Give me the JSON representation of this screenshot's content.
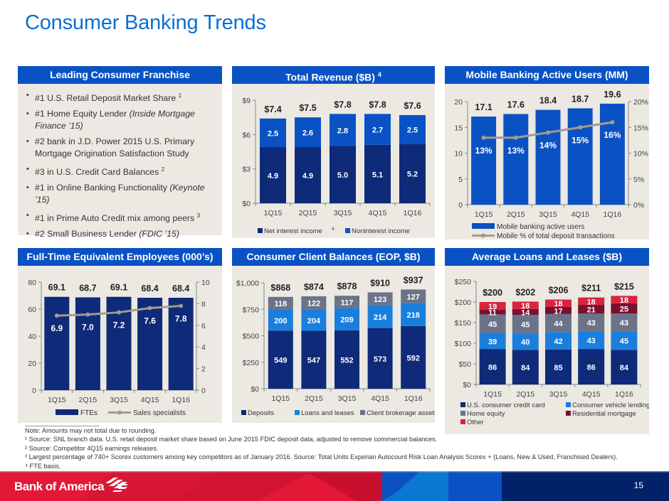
{
  "page": {
    "title": "Consumer Banking Trends",
    "page_number": "15",
    "brand": "Bank of America",
    "colors": {
      "title_blue": "#0a6fd3",
      "header_blue": "#0a52c4",
      "panel_bg": "#ece9e2",
      "navy": "#0e2a78",
      "mid_blue": "#0a52c4",
      "light_blue": "#1a7fdc",
      "gray": "#6b7388",
      "maroon": "#7a0f2e",
      "red": "#d9243f",
      "line_gray": "#a39b8f"
    }
  },
  "franchise": {
    "title": "Leading Consumer Franchise",
    "items": [
      {
        "text": "#1 U.S. Retail Deposit Market Share",
        "sup": "1",
        "italic": ""
      },
      {
        "text": "#1 Home Equity Lender ",
        "sup": "",
        "italic": "(Inside Mortgage Finance ’15)"
      },
      {
        "text": "#2 bank in J.D. Power 2015 U.S. Primary Mortgage Origination Satisfaction Study",
        "sup": "",
        "italic": ""
      },
      {
        "text": "#3 in U.S. Credit Card Balances",
        "sup": "2",
        "italic": ""
      },
      {
        "text": "#1 in Online Banking Functionality ",
        "sup": "",
        "italic": "(Keynote ’15)"
      },
      {
        "text": "#1 in Prime Auto Credit mix among peers",
        "sup": "3",
        "italic": ""
      },
      {
        "text": "#2 Small Business Lender ",
        "sup": "",
        "italic": "(FDIC ’15)"
      }
    ]
  },
  "notes": {
    "lines": [
      "Note: Amounts may not total due to rounding.",
      "¹ Source: SNL branch data. U.S. retail deposit market share based on June 2015 FDIC deposit data, adjusted to remove commercial balances.",
      "² Source: Competitor 4Q15 earnings releases.",
      "³ Largest percentage of 740+ Scorex customers among key competitors as of January 2016. Source: Total Units Experian Autocount Risk Loan Analysis Scorex + (Loans, New & Used, Franchised Dealers).",
      "⁴ FTE basis."
    ]
  },
  "chart_data": [
    {
      "id": "revenue",
      "type": "bar",
      "stacked": true,
      "title": "Total Revenue ($B)",
      "title_sup": "4",
      "categories": [
        "1Q15",
        "2Q15",
        "3Q15",
        "4Q15",
        "1Q16"
      ],
      "series": [
        {
          "name": "Net interest income",
          "name_sup": "4",
          "values": [
            4.9,
            4.9,
            5.0,
            5.1,
            5.2
          ],
          "color": "#0e2a78"
        },
        {
          "name": "Noninterest income",
          "values": [
            2.5,
            2.6,
            2.8,
            2.7,
            2.5
          ],
          "color": "#0a52c4"
        }
      ],
      "totals": [
        "$7.4",
        "$7.5",
        "$7.8",
        "$7.8",
        "$7.6"
      ],
      "labels": [
        [
          "4.9",
          "4.9",
          "5.0",
          "5.1",
          "5.2"
        ],
        [
          "2.5",
          "2.6",
          "2.8",
          "2.7",
          "2.5"
        ]
      ],
      "ylim": [
        0,
        9
      ],
      "yticks": [
        0,
        3,
        6,
        9
      ],
      "ytick_labels": [
        "$0",
        "$3",
        "$6",
        "$9"
      ],
      "legend": "bottom"
    },
    {
      "id": "mobile",
      "type": "bar",
      "title": "Mobile Banking Active Users (MM)",
      "categories": [
        "1Q15",
        "2Q15",
        "3Q15",
        "4Q15",
        "1Q16"
      ],
      "series": [
        {
          "name": "Mobile banking active users",
          "values": [
            17.1,
            17.6,
            18.4,
            18.7,
            19.6
          ],
          "color": "#0a52c4"
        }
      ],
      "line_series": {
        "name": "Mobile % of total deposit transactions",
        "values": [
          13,
          13,
          14,
          15,
          16
        ],
        "labels": [
          "13%",
          "13%",
          "14%",
          "15%",
          "16%"
        ],
        "color": "#a39b8f",
        "axis": "right"
      },
      "totals": [
        "17.1",
        "17.6",
        "18.4",
        "18.7",
        "19.6"
      ],
      "ylim": [
        0,
        20
      ],
      "yticks": [
        0,
        5,
        10,
        15,
        20
      ],
      "ytick_labels": [
        "0",
        "5",
        "10",
        "15",
        "20"
      ],
      "y2lim": [
        0,
        20
      ],
      "y2ticks": [
        0,
        5,
        10,
        15,
        20
      ],
      "y2tick_labels": [
        "0%",
        "5%",
        "10%",
        "15%",
        "20%"
      ],
      "legend": "bottom"
    },
    {
      "id": "fte",
      "type": "bar",
      "title": "Full-Time Equivalent Employees (000’s)",
      "categories": [
        "1Q15",
        "2Q15",
        "3Q15",
        "4Q15",
        "1Q16"
      ],
      "series": [
        {
          "name": "FTEs",
          "values": [
            69.1,
            68.7,
            69.1,
            68.4,
            68.4
          ],
          "color": "#0e2a78"
        }
      ],
      "line_series": {
        "name": "Sales specialists",
        "values": [
          6.9,
          7.0,
          7.2,
          7.6,
          7.8
        ],
        "labels": [
          "6.9",
          "7.0",
          "7.2",
          "7.6",
          "7.8"
        ],
        "color": "#a39b8f",
        "axis": "right"
      },
      "totals": [
        "69.1",
        "68.7",
        "69.1",
        "68.4",
        "68.4"
      ],
      "ylim": [
        0,
        80
      ],
      "yticks": [
        0,
        20,
        40,
        60,
        80
      ],
      "ytick_labels": [
        "0",
        "20",
        "40",
        "60",
        "80"
      ],
      "y2lim": [
        0,
        10
      ],
      "y2ticks": [
        0,
        2,
        4,
        6,
        8,
        10
      ],
      "y2tick_labels": [
        "0",
        "2",
        "4",
        "6",
        "8",
        "10"
      ],
      "legend": "bottom"
    },
    {
      "id": "balances",
      "type": "bar",
      "stacked": true,
      "title": "Consumer Client Balances (EOP, $B)",
      "categories": [
        "1Q15",
        "2Q15",
        "3Q15",
        "4Q15",
        "1Q16"
      ],
      "series": [
        {
          "name": "Deposits",
          "values": [
            549,
            547,
            552,
            573,
            592
          ],
          "color": "#0e2a78"
        },
        {
          "name": "Loans and leases",
          "values": [
            200,
            204,
            209,
            214,
            218
          ],
          "color": "#1a7fdc"
        },
        {
          "name": "Client brokerage assets",
          "values": [
            118,
            122,
            117,
            123,
            127
          ],
          "color": "#6b7388"
        }
      ],
      "totals": [
        "$868",
        "$874",
        "$878",
        "$910",
        "$937"
      ],
      "ylim": [
        0,
        1000
      ],
      "yticks": [
        0,
        250,
        500,
        750,
        1000
      ],
      "ytick_labels": [
        "$0",
        "$250",
        "$500",
        "$750",
        "$1,000"
      ],
      "legend": "bottom"
    },
    {
      "id": "loans",
      "type": "bar",
      "stacked": true,
      "title": "Average Loans and Leases ($B)",
      "categories": [
        "1Q15",
        "2Q15",
        "3Q15",
        "4Q15",
        "1Q16"
      ],
      "series": [
        {
          "name": "U.S. consumer credit card",
          "values": [
            86,
            84,
            85,
            86,
            84
          ],
          "color": "#0e2a78"
        },
        {
          "name": "Consumer vehicle lending",
          "values": [
            39,
            40,
            42,
            43,
            45
          ],
          "color": "#1a7fdc"
        },
        {
          "name": "Home equity",
          "values": [
            45,
            45,
            44,
            43,
            43
          ],
          "color": "#6b7388"
        },
        {
          "name": "Residential mortgage",
          "values": [
            11,
            14,
            17,
            21,
            25
          ],
          "color": "#7a0f2e"
        },
        {
          "name": "Other",
          "values": [
            19,
            18,
            18,
            18,
            18
          ],
          "color": "#d9243f"
        }
      ],
      "totals": [
        "$200",
        "$202",
        "$206",
        "$211",
        "$215"
      ],
      "ylim": [
        0,
        250
      ],
      "yticks": [
        0,
        50,
        100,
        150,
        200,
        250
      ],
      "ytick_labels": [
        "$0",
        "$50",
        "$100",
        "$150",
        "$200",
        "$250"
      ],
      "legend": "bottom"
    }
  ]
}
